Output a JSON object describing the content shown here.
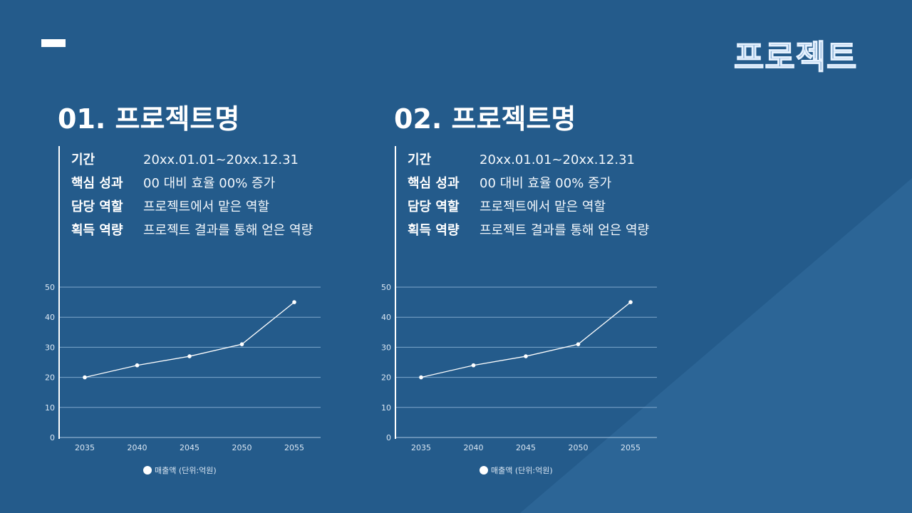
{
  "header": {
    "brand": "프로젝트"
  },
  "colors": {
    "background": "#245b8b",
    "line": "#ffffff",
    "grid": "#7ea7cc"
  },
  "projects": [
    {
      "title": "01. 프로젝트명",
      "info": [
        {
          "label": "기간",
          "value": "20xx.01.01~20xx.12.31"
        },
        {
          "label": "핵심 성과",
          "value": "00 대비 효율 00% 증가"
        },
        {
          "label": "담당 역할",
          "value": "프로젝트에서 맡은 역할"
        },
        {
          "label": "획득 역량",
          "value": "프로젝트 결과를 통해 얻은 역량"
        }
      ],
      "legend": "매출액 (단위:억원)"
    },
    {
      "title": "02. 프로젝트명",
      "info": [
        {
          "label": "기간",
          "value": "20xx.01.01~20xx.12.31"
        },
        {
          "label": "핵심 성과",
          "value": "00 대비 효율 00% 증가"
        },
        {
          "label": "담당 역할",
          "value": "프로젝트에서 맡은 역할"
        },
        {
          "label": "획득 역량",
          "value": "프로젝트 결과를 통해 얻은 역량"
        }
      ],
      "legend": "매출액 (단위:억원)"
    }
  ],
  "chart_data": [
    {
      "type": "line",
      "categories": [
        "2035",
        "2040",
        "2045",
        "2050",
        "2055"
      ],
      "series": [
        {
          "name": "매출액 (단위:억원)",
          "values": [
            20,
            24,
            27,
            31,
            45
          ]
        }
      ],
      "ylim": [
        0,
        50
      ],
      "yticks": [
        0,
        10,
        20,
        30,
        40,
        50
      ],
      "grid": true,
      "legend": "bottom"
    },
    {
      "type": "line",
      "categories": [
        "2035",
        "2040",
        "2045",
        "2050",
        "2055"
      ],
      "series": [
        {
          "name": "매출액 (단위:억원)",
          "values": [
            20,
            24,
            27,
            31,
            45
          ]
        }
      ],
      "ylim": [
        0,
        50
      ],
      "yticks": [
        0,
        10,
        20,
        30,
        40,
        50
      ],
      "grid": true,
      "legend": "bottom"
    }
  ]
}
